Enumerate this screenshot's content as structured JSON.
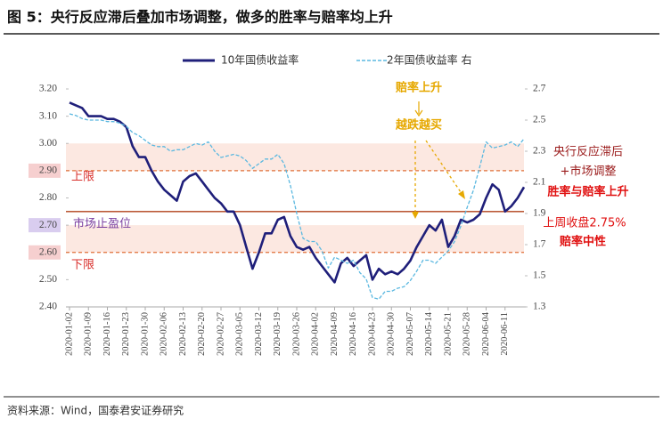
{
  "chart_data": {
    "type": "line",
    "title": "图 5：央行反应滞后叠加市场调整，做多的胜率与赔率均上升",
    "source": "资料来源：Wind，国泰君安证券研究",
    "categories": [
      "2020-01-02",
      null,
      null,
      "2020-01-09",
      null,
      null,
      "2020-01-16",
      null,
      null,
      "2020-01-23",
      null,
      null,
      "2020-01-30",
      null,
      null,
      "2020-02-06",
      null,
      null,
      "2020-02-13",
      null,
      null,
      "2020-02-20",
      null,
      null,
      "2020-02-27",
      null,
      null,
      "2020-03-05",
      null,
      null,
      "2020-03-12",
      null,
      null,
      "2020-03-19",
      null,
      null,
      "2020-03-26",
      null,
      null,
      "2020-04-02",
      null,
      null,
      "2020-04-09",
      null,
      null,
      "2020-04-16",
      null,
      null,
      "2020-04-23",
      null,
      null,
      "2020-04-30",
      null,
      null,
      "2020-05-07",
      null,
      null,
      "2020-05-14",
      null,
      null,
      "2020-05-21",
      null,
      null,
      "2020-05-28",
      null,
      null,
      "2020-06-04",
      null,
      null,
      "2020-06-11",
      null,
      null,
      null
    ],
    "series": [
      {
        "name": "10年国债收益率",
        "color": "#1f1f7a",
        "axis": "y",
        "values": [
          3.15,
          3.14,
          3.13,
          3.1,
          3.1,
          3.1,
          3.09,
          3.09,
          3.08,
          3.06,
          2.99,
          2.95,
          2.95,
          2.9,
          2.86,
          2.83,
          2.81,
          2.79,
          2.86,
          2.88,
          2.89,
          2.86,
          2.83,
          2.8,
          2.78,
          2.75,
          2.75,
          2.7,
          2.62,
          2.54,
          2.6,
          2.67,
          2.67,
          2.72,
          2.73,
          2.66,
          2.62,
          2.61,
          2.62,
          2.58,
          2.55,
          2.52,
          2.49,
          2.56,
          2.58,
          2.55,
          2.57,
          2.59,
          2.5,
          2.54,
          2.52,
          2.53,
          2.52,
          2.54,
          2.57,
          2.62,
          2.66,
          2.7,
          2.68,
          2.72,
          2.62,
          2.66,
          2.72,
          2.71,
          2.72,
          2.74,
          2.8,
          2.85,
          2.83,
          2.75,
          2.77,
          2.8,
          2.84
        ]
      },
      {
        "name": "2年国债收益率 右",
        "color": "#5bb8e0",
        "axis": "y2",
        "values": [
          2.54,
          2.53,
          2.51,
          2.5,
          2.5,
          2.5,
          2.49,
          2.49,
          2.48,
          2.46,
          2.42,
          2.4,
          2.37,
          2.34,
          2.33,
          2.33,
          2.3,
          2.31,
          2.31,
          2.33,
          2.35,
          2.34,
          2.36,
          2.3,
          2.26,
          2.27,
          2.28,
          2.27,
          2.24,
          2.19,
          2.22,
          2.25,
          2.25,
          2.28,
          2.22,
          2.08,
          1.9,
          1.74,
          1.72,
          1.72,
          1.66,
          1.55,
          1.62,
          1.6,
          1.58,
          1.6,
          1.52,
          1.48,
          1.36,
          1.35,
          1.4,
          1.4,
          1.42,
          1.43,
          1.47,
          1.53,
          1.6,
          1.6,
          1.58,
          1.62,
          1.66,
          1.72,
          1.82,
          1.94,
          2.05,
          2.2,
          2.36,
          2.32,
          2.33,
          2.34,
          2.36,
          2.33,
          2.38
        ]
      }
    ],
    "ylim": [
      2.4,
      3.2
    ],
    "yticks": [
      {
        "value": 2.4,
        "label": "2.40"
      },
      {
        "value": 2.5,
        "label": "2.50"
      },
      {
        "value": 2.6,
        "label": "2.60"
      },
      {
        "value": 2.7,
        "label": "2.70"
      },
      {
        "value": 2.8,
        "label": "2.80"
      },
      {
        "value": 2.9,
        "label": "2.90"
      },
      {
        "value": 3.0,
        "label": "3.00"
      },
      {
        "value": 3.1,
        "label": "3.10"
      },
      {
        "value": 3.2,
        "label": "3.20"
      }
    ],
    "y2lim": [
      1.3,
      2.7
    ],
    "y2ticks": [
      1.3,
      1.5,
      1.7,
      1.9,
      2.1,
      2.3,
      2.5,
      2.7
    ],
    "bands": [
      [
        2.9,
        3.0
      ],
      [
        2.6,
        2.7
      ]
    ],
    "ref_lines": [
      2.9,
      2.75,
      2.6
    ],
    "annotations": [
      "上限",
      "下限",
      "市场止盈位",
      "赔率上升",
      "越跌越买",
      "央行反应滞后",
      "+市场调整",
      "胜率与赔率上升",
      "上周收盘2.75%",
      "赔率中性"
    ]
  }
}
